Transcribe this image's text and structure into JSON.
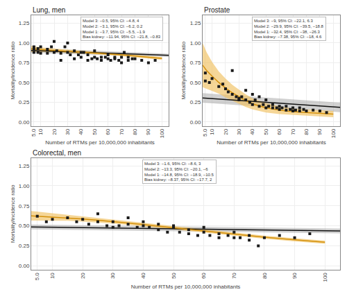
{
  "chart_data": [
    {
      "type": "scatter",
      "title": "Lung, men",
      "xlabel": "Number of RTMs per 10,000,000 inhabitants",
      "ylabel": "Mortality/incidence ratio",
      "xlim": [
        3,
        105
      ],
      "ylim": [
        -0.05,
        1.35
      ],
      "xticks": [
        {
          "value": 5,
          "label": "5.0"
        },
        10,
        20,
        30,
        40,
        50,
        60,
        70,
        80,
        90,
        100
      ],
      "yticks": [
        {
          "value": 0.0,
          "label": "0.00"
        },
        0.25,
        {
          "value": 0.5,
          "label": "0.50"
        },
        0.75,
        {
          "value": 1.0,
          "label": "1.00"
        },
        1.25
      ],
      "grid": true,
      "annotations": [
        "Model 3: −0.5, 95% CI: −4.8, 4\nModel 2: −3.1, 95% CI: −6.2, 0.2\nModel 1: −3.7, 95% CI: −5.5, −1.9\nBias kidney: −11.94, 95% CI: −21.8, −0.83"
      ],
      "series": [
        {
          "type": "band",
          "color": "#999999",
          "x": [
            3,
            105
          ],
          "upper": [
            0.935,
            0.863
          ],
          "lower": [
            0.875,
            0.823
          ]
        },
        {
          "type": "band",
          "color": "#F0C060",
          "x": [
            3,
            10,
            20,
            30,
            40,
            50,
            60,
            70,
            80,
            90,
            100
          ],
          "upper": [
            0.965,
            0.945,
            0.928,
            0.916,
            0.904,
            0.893,
            0.882,
            0.867,
            0.853,
            0.838,
            0.823
          ],
          "lower": [
            0.885,
            0.885,
            0.882,
            0.874,
            0.866,
            0.857,
            0.848,
            0.833,
            0.817,
            0.802,
            0.787
          ]
        },
        {
          "type": "line",
          "color": "#111111",
          "x": [
            3,
            105
          ],
          "values": [
            0.905,
            0.843
          ]
        },
        {
          "type": "line",
          "color": "#D4900A",
          "x": [
            3,
            10,
            20,
            30,
            40,
            50,
            60,
            70,
            80,
            90,
            100
          ],
          "values": [
            0.925,
            0.915,
            0.905,
            0.895,
            0.885,
            0.875,
            0.865,
            0.85,
            0.835,
            0.82,
            0.805
          ]
        },
        {
          "type": "scatter",
          "color": "#1a1a1a",
          "marker": "square",
          "x": [
            5,
            5,
            5,
            8,
            8,
            10,
            10,
            15,
            15,
            18,
            20,
            20,
            22,
            25,
            25,
            28,
            30,
            30,
            32,
            35,
            35,
            38,
            40,
            40,
            42,
            45,
            45,
            48,
            50,
            50,
            52,
            55,
            55,
            58,
            60,
            60,
            62,
            65,
            65,
            68,
            70,
            70,
            72,
            75,
            75,
            78,
            80,
            85,
            90,
            95
          ],
          "values": [
            0.88,
            0.92,
            0.95,
            0.88,
            0.93,
            0.87,
            0.95,
            0.87,
            0.92,
            0.95,
            0.88,
            1.02,
            0.9,
            0.78,
            0.87,
            0.95,
            0.88,
            1.0,
            0.85,
            0.8,
            0.9,
            0.85,
            0.88,
            0.82,
            0.88,
            0.78,
            0.85,
            0.8,
            0.82,
            0.9,
            0.8,
            0.82,
            0.78,
            0.82,
            0.8,
            0.85,
            0.78,
            0.82,
            0.8,
            0.78,
            0.82,
            0.75,
            0.88,
            0.78,
            0.82,
            0.8,
            0.8,
            0.78,
            0.75,
            0.78
          ]
        }
      ]
    },
    {
      "type": "scatter",
      "title": "Prostate",
      "xlabel": "Number of RTMs per 10,000,000 inhabitants",
      "ylabel": "Mortality/incidence ratio",
      "xlim": [
        3,
        105
      ],
      "ylim": [
        -0.05,
        1.35
      ],
      "xticks": [
        {
          "value": 5,
          "label": "5.0"
        },
        10,
        20,
        30,
        40,
        50,
        60,
        70,
        80,
        90,
        100
      ],
      "yticks": [
        {
          "value": 0.0,
          "label": "0.00"
        },
        0.25,
        {
          "value": 0.5,
          "label": "0.50"
        },
        0.75,
        {
          "value": 1.0,
          "label": "1.00"
        },
        1.25
      ],
      "grid": true,
      "annotations": [
        "Model 3: −9, 95% CI: −22.1, 6.3\nModel 2: −29.9, 95% CI: −39.5, −18.8\nModel 1: −32.4, 95% CI: −38, −26.3\nBias kidney: −7.38, 95% CI: −18, 4.6"
      ],
      "series": [
        {
          "type": "band",
          "color": "#999999",
          "x": [
            3,
            105
          ],
          "upper": [
            0.365,
            0.245
          ],
          "lower": [
            0.245,
            0.125
          ]
        },
        {
          "type": "band",
          "color": "#F0C060",
          "x": [
            3,
            6,
            10,
            15,
            20,
            25,
            30,
            35,
            40,
            50,
            60,
            70,
            80,
            90,
            100
          ],
          "upper": [
            1.0,
            0.88,
            0.76,
            0.64,
            0.55,
            0.47,
            0.41,
            0.35,
            0.3,
            0.24,
            0.2,
            0.17,
            0.16,
            0.15,
            0.14
          ],
          "lower": [
            0.44,
            0.42,
            0.4,
            0.36,
            0.31,
            0.27,
            0.23,
            0.19,
            0.16,
            0.12,
            0.1,
            0.09,
            0.08,
            0.07,
            0.06
          ]
        },
        {
          "type": "line",
          "color": "#111111",
          "x": [
            3,
            105
          ],
          "values": [
            0.305,
            0.185
          ]
        },
        {
          "type": "line",
          "color": "#D4900A",
          "x": [
            3,
            6,
            10,
            15,
            20,
            25,
            30,
            35,
            40,
            50,
            60,
            70,
            80,
            90,
            100
          ],
          "values": [
            0.72,
            0.65,
            0.58,
            0.5,
            0.43,
            0.37,
            0.32,
            0.27,
            0.23,
            0.18,
            0.15,
            0.13,
            0.12,
            0.11,
            0.1
          ]
        },
        {
          "type": "scatter",
          "color": "#1a1a1a",
          "marker": "square",
          "x": [
            5,
            5,
            8,
            10,
            15,
            18,
            20,
            22,
            25,
            25,
            28,
            30,
            30,
            32,
            35,
            35,
            38,
            40,
            40,
            42,
            45,
            45,
            48,
            50,
            50,
            52,
            55,
            55,
            58,
            60,
            60,
            62,
            65,
            65,
            68,
            70,
            70,
            72,
            75,
            75,
            78,
            80,
            85,
            90,
            95
          ],
          "values": [
            0.62,
            0.52,
            0.5,
            0.55,
            0.45,
            0.48,
            0.42,
            0.38,
            0.35,
            0.65,
            0.32,
            0.3,
            0.28,
            0.32,
            0.28,
            0.4,
            0.25,
            0.22,
            0.35,
            0.28,
            0.2,
            0.32,
            0.22,
            0.18,
            0.28,
            0.2,
            0.18,
            0.22,
            0.18,
            0.16,
            0.2,
            0.18,
            0.15,
            0.2,
            0.16,
            0.14,
            0.18,
            0.15,
            0.14,
            0.18,
            0.16,
            0.14,
            0.15,
            0.14,
            0.12
          ]
        }
      ]
    },
    {
      "type": "scatter",
      "title": "Colorectal, men",
      "xlabel": "Number of RTMs per 10,000,000 inhabitants",
      "ylabel": "Mortality/incidence ratio",
      "xlim": [
        3,
        105
      ],
      "ylim": [
        -0.05,
        1.35
      ],
      "xticks": [
        {
          "value": 5,
          "label": "5.0"
        },
        10,
        20,
        30,
        40,
        50,
        60,
        70,
        80,
        90,
        100
      ],
      "yticks": [
        {
          "value": 0.0,
          "label": "0.00"
        },
        0.25,
        {
          "value": 0.5,
          "label": "0.50"
        },
        0.75,
        {
          "value": 1.0,
          "label": "1.00"
        },
        1.25
      ],
      "grid": true,
      "annotations": [
        "Model 3: −1.6, 95% CI: −8.6, 3\nModel 2: −13.3, 95% CI: −20.1, −6\nModel 1: −14.8, 95% CI: −18.9, −10.5\nBias kidney: −8.37, 95% CI: −17.7, 2"
      ],
      "series": [
        {
          "type": "band",
          "color": "#999999",
          "x": [
            3,
            105
          ],
          "upper": [
            0.515,
            0.465
          ],
          "lower": [
            0.455,
            0.405
          ]
        },
        {
          "type": "band",
          "color": "#F0C060",
          "x": [
            3,
            10,
            15,
            20,
            25,
            30,
            35,
            40,
            50,
            60,
            70,
            80,
            90,
            100
          ],
          "upper": [
            0.685,
            0.655,
            0.637,
            0.617,
            0.598,
            0.578,
            0.558,
            0.536,
            0.495,
            0.455,
            0.415,
            0.378,
            0.345,
            0.315
          ],
          "lower": [
            0.565,
            0.565,
            0.563,
            0.553,
            0.542,
            0.528,
            0.512,
            0.494,
            0.455,
            0.415,
            0.375,
            0.338,
            0.305,
            0.275
          ]
        },
        {
          "type": "line",
          "color": "#111111",
          "x": [
            3,
            105
          ],
          "values": [
            0.485,
            0.435
          ]
        },
        {
          "type": "line",
          "color": "#D4900A",
          "x": [
            3,
            10,
            15,
            20,
            25,
            30,
            35,
            40,
            50,
            60,
            70,
            80,
            90,
            100
          ],
          "values": [
            0.625,
            0.61,
            0.6,
            0.585,
            0.57,
            0.553,
            0.535,
            0.515,
            0.475,
            0.435,
            0.395,
            0.358,
            0.325,
            0.295
          ]
        },
        {
          "type": "scatter",
          "color": "#1a1a1a",
          "marker": "square",
          "x": [
            5,
            8,
            10,
            15,
            18,
            20,
            22,
            25,
            25,
            28,
            30,
            30,
            32,
            35,
            35,
            38,
            40,
            40,
            42,
            45,
            45,
            48,
            50,
            50,
            52,
            55,
            55,
            58,
            60,
            60,
            62,
            65,
            65,
            68,
            70,
            70,
            72,
            75,
            75,
            78,
            80,
            85,
            90,
            95
          ],
          "values": [
            0.62,
            0.55,
            0.58,
            0.6,
            0.55,
            0.58,
            0.52,
            0.55,
            0.65,
            0.5,
            0.48,
            0.55,
            0.5,
            0.52,
            0.6,
            0.48,
            0.5,
            0.55,
            0.48,
            0.45,
            0.52,
            0.42,
            0.48,
            0.5,
            0.42,
            0.4,
            0.45,
            0.38,
            0.42,
            0.48,
            0.38,
            0.4,
            0.35,
            0.38,
            0.35,
            0.42,
            0.35,
            0.38,
            0.32,
            0.25,
            0.35,
            0.38,
            0.35,
            0.4
          ]
        }
      ]
    }
  ]
}
